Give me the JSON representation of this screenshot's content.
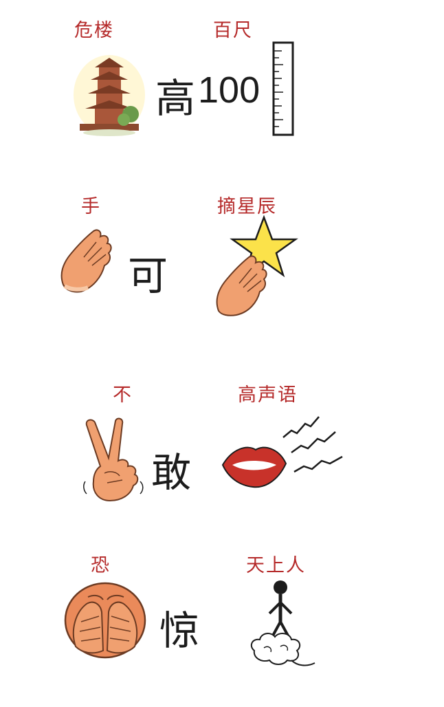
{
  "rows": [
    {
      "left_label": "危楼",
      "right_label": "百尺",
      "center_char": "高",
      "number": "100"
    },
    {
      "left_label": "手",
      "right_label": "摘星辰",
      "center_char": "可"
    },
    {
      "left_label": "不",
      "right_label": "高声语",
      "center_char": "敢"
    },
    {
      "left_label": "恐",
      "right_label": "天上人",
      "center_char": "惊"
    }
  ],
  "colors": {
    "label": "#b52a2a",
    "text": "#1c1c1c",
    "skin": "#f0a070",
    "star": "#fbe24a",
    "lips": "#c8322a",
    "pagoda": "#7a3b24"
  },
  "icons": [
    "pagoda-icon",
    "ruler-icon",
    "hand-icon",
    "hand-star-icon",
    "v-sign-hand-icon",
    "lips-icon",
    "covered-face-icon",
    "cloud-person-icon"
  ]
}
